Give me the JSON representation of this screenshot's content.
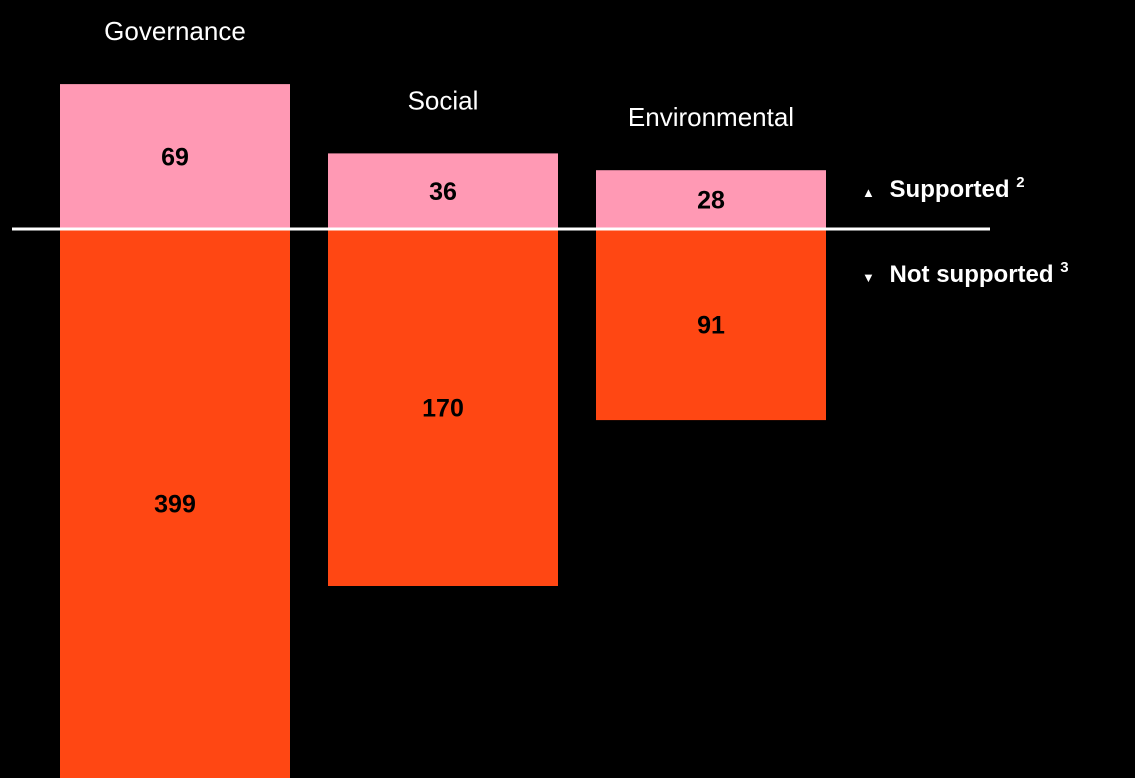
{
  "chart_data": {
    "type": "bar",
    "orientation": "diverging-vertical",
    "categories": [
      "Governance",
      "Social",
      "Environmental"
    ],
    "series": [
      {
        "name": "Supported",
        "values": [
          69,
          36,
          28
        ],
        "color": "#ff99b4",
        "direction": "up"
      },
      {
        "name": "Not supported",
        "values": [
          399,
          170,
          91
        ],
        "color": "#ff4713",
        "direction": "down"
      }
    ],
    "legend": [
      {
        "marker": "▲",
        "text": "Supported",
        "superscript": "2"
      },
      {
        "marker": "▼",
        "text": "Not supported",
        "superscript": "3"
      }
    ],
    "legend_position": "right",
    "baseline_color": "#ffffff",
    "background": "#000000",
    "grid": false
  }
}
